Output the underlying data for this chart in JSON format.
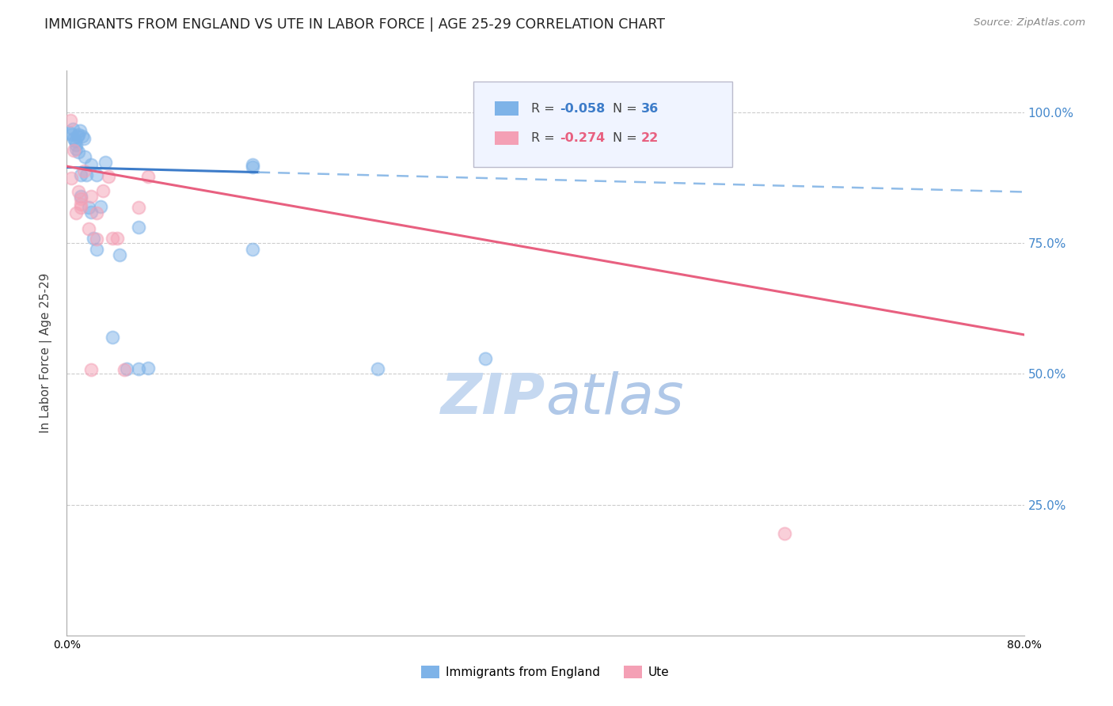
{
  "title": "IMMIGRANTS FROM ENGLAND VS UTE IN LABOR FORCE | AGE 25-29 CORRELATION CHART",
  "source": "Source: ZipAtlas.com",
  "ylabel": "In Labor Force | Age 25-29",
  "xlim": [
    0.0,
    0.8
  ],
  "ylim": [
    0.0,
    1.08
  ],
  "background_color": "#ffffff",
  "grid_color": "#cccccc",
  "blue_scatter_color": "#7eb3e8",
  "pink_scatter_color": "#f4a0b5",
  "blue_line_color": "#3d7cc9",
  "pink_line_color": "#e86080",
  "blue_dashed_color": "#90bce8",
  "england_R": "-0.058",
  "england_N": "36",
  "ute_R": "-0.274",
  "ute_N": "22",
  "england_x": [
    0.003,
    0.004,
    0.005,
    0.006,
    0.007,
    0.008,
    0.008,
    0.009,
    0.01,
    0.01,
    0.011,
    0.012,
    0.012,
    0.013,
    0.014,
    0.015,
    0.016,
    0.018,
    0.02,
    0.02,
    0.022,
    0.025,
    0.028,
    0.032,
    0.038,
    0.044,
    0.05,
    0.06,
    0.068,
    0.155,
    0.155,
    0.26,
    0.35,
    0.155,
    0.06,
    0.025
  ],
  "england_y": [
    0.96,
    0.958,
    0.968,
    0.95,
    0.945,
    0.938,
    0.93,
    0.955,
    0.958,
    0.925,
    0.965,
    0.88,
    0.84,
    0.955,
    0.95,
    0.915,
    0.88,
    0.818,
    0.9,
    0.81,
    0.76,
    0.88,
    0.82,
    0.905,
    0.57,
    0.728,
    0.51,
    0.78,
    0.512,
    0.9,
    0.895,
    0.51,
    0.53,
    0.738,
    0.51,
    0.738
  ],
  "ute_x": [
    0.003,
    0.004,
    0.006,
    0.008,
    0.01,
    0.012,
    0.014,
    0.018,
    0.02,
    0.025,
    0.03,
    0.038,
    0.042,
    0.048,
    0.06,
    0.068,
    0.012,
    0.02,
    0.025,
    0.035,
    0.6,
    0.012
  ],
  "ute_y": [
    0.985,
    0.875,
    0.928,
    0.808,
    0.848,
    0.818,
    0.888,
    0.778,
    0.508,
    0.808,
    0.85,
    0.76,
    0.76,
    0.508,
    0.818,
    0.878,
    0.835,
    0.84,
    0.758,
    0.878,
    0.195,
    0.825
  ],
  "eng_trend_y0": 0.895,
  "eng_trend_y1": 0.848,
  "ute_trend_y0": 0.897,
  "ute_trend_y1": 0.575,
  "solid_cutoff": 0.16
}
